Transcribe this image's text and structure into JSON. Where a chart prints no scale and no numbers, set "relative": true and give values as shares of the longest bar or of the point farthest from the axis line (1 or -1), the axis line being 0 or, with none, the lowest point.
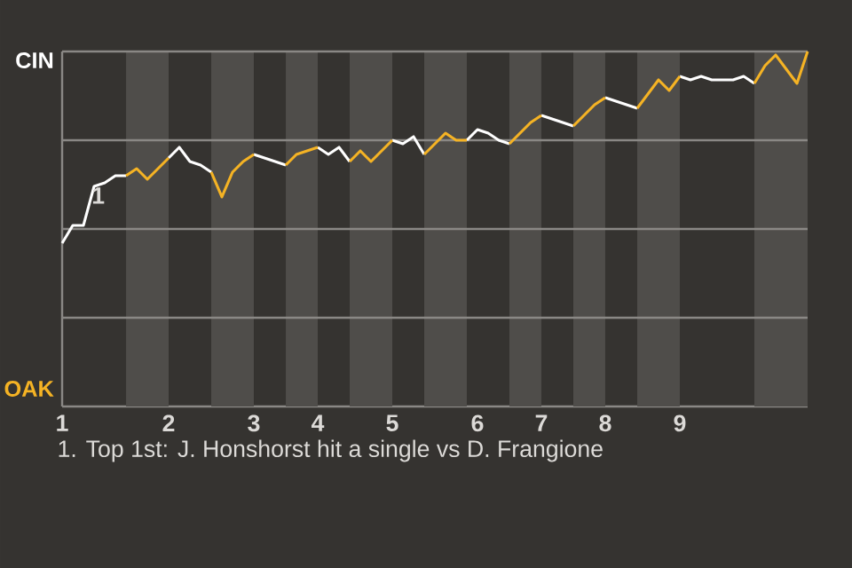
{
  "chart_data": {
    "type": "line",
    "relative": true,
    "categories": [
      "1",
      null,
      null,
      null,
      null,
      null,
      null,
      null,
      null,
      null,
      "2",
      null,
      null,
      null,
      null,
      null,
      null,
      null,
      "3",
      null,
      null,
      null,
      null,
      null,
      "4",
      null,
      null,
      null,
      null,
      null,
      null,
      "5",
      null,
      null,
      null,
      null,
      null,
      null,
      null,
      "6",
      null,
      null,
      null,
      null,
      null,
      "7",
      null,
      null,
      null,
      null,
      null,
      "8",
      null,
      null,
      null,
      null,
      null,
      null,
      "9",
      null,
      null,
      null,
      null,
      null,
      null,
      null,
      null,
      null,
      null,
      null,
      null
    ],
    "series": [
      {
        "color": "#ffffff",
        "values": [
          0.46,
          0.51,
          0.51,
          0.62,
          0.63,
          0.65,
          0.65,
          null,
          null,
          null,
          0.7,
          0.73,
          0.69,
          0.68,
          0.66,
          null,
          null,
          null,
          0.71,
          0.7,
          0.69,
          0.68,
          null,
          null,
          0.73,
          0.71,
          0.73,
          0.69,
          null,
          null,
          null,
          0.75,
          0.74,
          0.76,
          0.71,
          null,
          null,
          null,
          0.75,
          0.78,
          0.77,
          0.75,
          0.74,
          null,
          null,
          0.82,
          0.81,
          0.8,
          0.79,
          null,
          null,
          0.87,
          0.86,
          0.85,
          0.84,
          null,
          null,
          null,
          0.93,
          0.92,
          0.93,
          0.92,
          0.92,
          0.92,
          0.93,
          0.91,
          null,
          null,
          null,
          null,
          null
        ]
      },
      {
        "color": "#f5b324",
        "values": [
          null,
          null,
          null,
          null,
          null,
          null,
          0.65,
          0.67,
          0.64,
          0.67,
          0.7,
          null,
          null,
          null,
          0.66,
          0.59,
          0.66,
          0.69,
          0.71,
          null,
          null,
          0.68,
          0.71,
          0.72,
          0.73,
          null,
          null,
          0.69,
          0.72,
          0.69,
          0.72,
          0.75,
          null,
          null,
          0.71,
          0.74,
          0.77,
          0.75,
          0.75,
          null,
          null,
          null,
          0.74,
          0.77,
          0.8,
          0.82,
          null,
          null,
          0.79,
          0.82,
          0.85,
          0.87,
          null,
          null,
          0.84,
          0.88,
          0.92,
          0.89,
          0.93,
          null,
          null,
          null,
          null,
          null,
          null,
          0.91,
          0.96,
          0.99,
          0.95,
          0.91,
          1
        ]
      }
    ],
    "grid": "y",
    "annotations": [
      "CIN",
      "OAK",
      "1",
      "1. Top 1st: J. Honshorst hit a single vs D. Frangione"
    ]
  }
}
